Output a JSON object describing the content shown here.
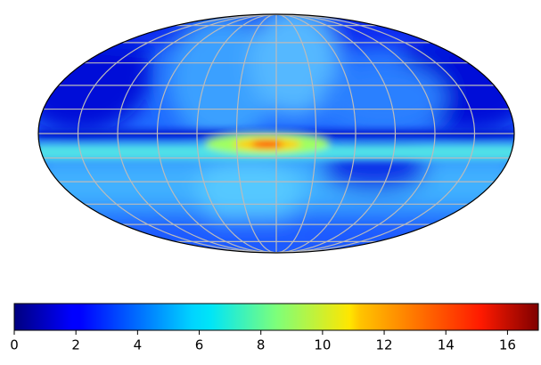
{
  "chart_data": {
    "type": "map",
    "projection": "mollweide",
    "colormap": "jet",
    "colorbar": {
      "clim": [
        0,
        17
      ],
      "ticks": [
        0,
        2,
        4,
        6,
        8,
        10,
        12,
        14,
        16
      ]
    }
  }
}
